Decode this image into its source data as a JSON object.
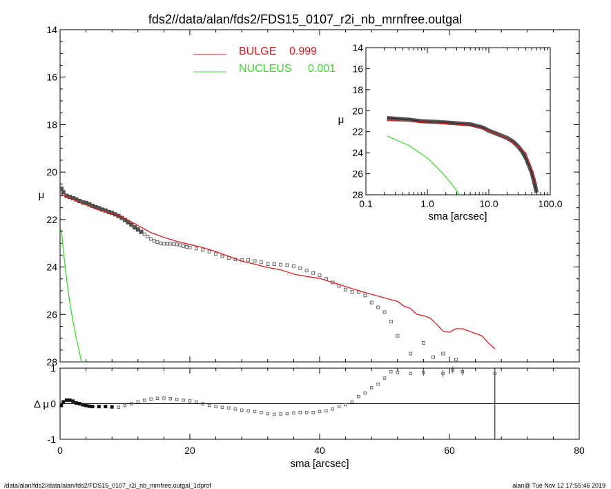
{
  "title": "fds2//data/alan/fds2/FDS15_0107_r2i_nb_mrnfree.outgal",
  "footer": {
    "left": "/data/alan/fds2//data/alan/fds2/FDS15_0107_r2i_nb_mrnfree.outgal_1dprof",
    "right": "alan@  Tue Nov 12 17:55:46 2019"
  },
  "colors": {
    "bulge": "#e41a1c",
    "nucleus": "#33dd22",
    "data": "#555555",
    "axis": "#000000"
  },
  "chart_data": [
    {
      "id": "main",
      "type": "scatter",
      "ylabel": "μ",
      "xlim": [
        0,
        80
      ],
      "ylim": [
        28,
        14
      ],
      "ytick_labels": [
        "14",
        "16",
        "18",
        "20",
        "22",
        "24",
        "26",
        "28"
      ],
      "legend": [
        {
          "name": "BULGE",
          "value": "0.999"
        },
        {
          "name": "NUCLEUS",
          "value": "0.001"
        }
      ],
      "series": [
        {
          "name": "data",
          "style": "square-markers",
          "x": [
            0.2,
            0.5,
            1.0,
            1.5,
            2.0,
            2.5,
            3.0,
            3.5,
            4.0,
            4.5,
            5.0,
            5.5,
            6.0,
            6.5,
            7.0,
            7.5,
            8.0,
            8.5,
            9.0,
            9.5,
            10.0,
            10.5,
            11.0,
            11.5,
            12.0,
            12.5,
            13.0,
            13.5,
            14.0,
            14.5,
            15.0,
            15.5,
            16.0,
            16.5,
            17.0,
            17.5,
            18.0,
            18.5,
            19.0,
            19.5,
            20.0,
            21.0,
            22.0,
            23.0,
            24.0,
            25.0,
            26.0,
            27.0,
            28.0,
            29.0,
            30.0,
            31.0,
            32.0,
            33.0,
            34.0,
            35.0,
            36.0,
            37.0,
            38.0,
            39.0,
            40.0,
            41.0,
            42.0,
            43.0,
            44.0,
            45.0,
            46.0,
            47.0,
            48.0,
            49.0,
            50.0,
            51.0,
            52.0,
            54.0,
            56.0,
            57.5,
            59.0,
            61.0
          ],
          "y": [
            20.7,
            20.85,
            21.0,
            21.05,
            21.1,
            21.15,
            21.22,
            21.28,
            21.3,
            21.36,
            21.42,
            21.48,
            21.52,
            21.58,
            21.62,
            21.68,
            21.72,
            21.78,
            21.85,
            21.93,
            22.02,
            22.12,
            22.22,
            22.33,
            22.42,
            22.52,
            22.62,
            22.72,
            22.82,
            22.9,
            22.95,
            23.0,
            23.02,
            23.02,
            23.02,
            23.03,
            23.05,
            23.08,
            23.12,
            23.15,
            23.18,
            23.22,
            23.28,
            23.35,
            23.45,
            23.55,
            23.62,
            23.68,
            23.7,
            23.7,
            23.75,
            23.8,
            23.88,
            23.88,
            23.9,
            23.92,
            23.96,
            24.05,
            24.15,
            24.25,
            24.35,
            24.5,
            24.65,
            24.8,
            24.95,
            25.05,
            25.05,
            25.2,
            25.5,
            25.7,
            25.9,
            26.3,
            26.9,
            27.65,
            27.2,
            27.8,
            27.65,
            27.9
          ]
        },
        {
          "name": "BULGE",
          "style": "line",
          "x": [
            0.2,
            2,
            4,
            6,
            8,
            10,
            12,
            14,
            16,
            18,
            20,
            22,
            24,
            26,
            28,
            30,
            32,
            34,
            36,
            38,
            40,
            42,
            44,
            46,
            48,
            50,
            52,
            53,
            54,
            55,
            56,
            57,
            58,
            59,
            60,
            61,
            62,
            63,
            64,
            65,
            66,
            67
          ],
          "y": [
            20.95,
            21.15,
            21.38,
            21.6,
            21.75,
            21.95,
            22.25,
            22.55,
            22.75,
            22.92,
            23.05,
            23.18,
            23.35,
            23.55,
            23.75,
            23.88,
            24.02,
            24.12,
            24.3,
            24.4,
            24.48,
            24.65,
            24.82,
            25.0,
            25.15,
            25.3,
            25.45,
            25.65,
            25.75,
            26.0,
            26.05,
            26.15,
            26.4,
            26.7,
            26.75,
            26.6,
            26.6,
            26.7,
            26.8,
            26.9,
            27.2,
            27.45
          ]
        },
        {
          "name": "NUCLEUS",
          "style": "line",
          "x": [
            0.2,
            0.5,
            1.0,
            1.5,
            2.0,
            2.5,
            3.0,
            3.3
          ],
          "y": [
            22.4,
            23.3,
            24.5,
            25.5,
            26.3,
            27.0,
            27.6,
            28.0
          ]
        }
      ]
    },
    {
      "id": "inset",
      "type": "line",
      "xscale": "log",
      "xlabel": "sma [arcsec]",
      "ylabel": "μ",
      "xlim": [
        0.1,
        100.0
      ],
      "ylim": [
        28,
        14
      ],
      "xtick_labels": [
        "0.1",
        "1.0",
        "10.0",
        "100.0"
      ],
      "ytick_labels": [
        "14",
        "16",
        "18",
        "20",
        "22",
        "24",
        "26",
        "28"
      ],
      "series": [
        {
          "name": "data",
          "x": [
            0.22,
            0.3,
            0.5,
            0.8,
            1.2,
            2,
            3,
            5,
            8,
            10,
            15,
            20,
            25,
            30,
            35,
            40,
            45,
            50,
            55,
            60
          ],
          "y": [
            20.7,
            20.75,
            20.85,
            21.0,
            21.05,
            21.12,
            21.2,
            21.3,
            21.6,
            21.9,
            22.3,
            22.6,
            22.95,
            23.4,
            23.9,
            24.5,
            25.2,
            25.9,
            26.8,
            27.8
          ]
        },
        {
          "name": "BULGE",
          "x": [
            0.22,
            0.5,
            1,
            2,
            5,
            10,
            20,
            40,
            60
          ],
          "y": [
            20.95,
            21.0,
            21.1,
            21.2,
            21.4,
            21.9,
            22.6,
            24.0,
            27.0
          ]
        },
        {
          "name": "NUCLEUS",
          "x": [
            0.22,
            0.5,
            1.0,
            1.5,
            2.0,
            2.5,
            3.0,
            3.3
          ],
          "y": [
            22.4,
            23.3,
            24.5,
            25.5,
            26.3,
            27.0,
            27.6,
            28.0
          ]
        }
      ]
    },
    {
      "id": "residual",
      "type": "scatter",
      "xlabel": "sma [arcsec]",
      "ylabel": "Δ μ",
      "xlim": [
        0,
        80
      ],
      "ylim": [
        -1,
        1
      ],
      "xtick_labels": [
        "0",
        "20",
        "40",
        "60",
        "80"
      ],
      "ytick_labels": [
        "-1",
        "0",
        "1"
      ],
      "cutoff_x": 67,
      "series": [
        {
          "name": "residual",
          "x": [
            0.2,
            0.5,
            1.0,
            1.5,
            2.0,
            2.5,
            3.0,
            3.5,
            4.0,
            4.5,
            5.0,
            6,
            7,
            8,
            9,
            10,
            11,
            12,
            13,
            14,
            15,
            16,
            17,
            18,
            19,
            20,
            21,
            22,
            23,
            24,
            25,
            26,
            27,
            28,
            29,
            30,
            31,
            32,
            33,
            34,
            35,
            36,
            37,
            38,
            39,
            40,
            41,
            42,
            43,
            44,
            45,
            46,
            47,
            48,
            49,
            50,
            51,
            52,
            54,
            56,
            59,
            60.5,
            62,
            67
          ],
          "y": [
            -0.05,
            0.05,
            0.1,
            0.1,
            0.07,
            0.02,
            0.0,
            -0.03,
            -0.05,
            -0.07,
            -0.08,
            -0.08,
            -0.08,
            -0.09,
            -0.1,
            -0.05,
            0.0,
            0.05,
            0.1,
            0.13,
            0.15,
            0.16,
            0.14,
            0.12,
            0.1,
            0.08,
            0.05,
            0.0,
            -0.05,
            -0.08,
            -0.1,
            -0.12,
            -0.15,
            -0.18,
            -0.2,
            -0.22,
            -0.25,
            -0.28,
            -0.3,
            -0.29,
            -0.28,
            -0.26,
            -0.25,
            -0.25,
            -0.25,
            -0.22,
            -0.2,
            -0.15,
            -0.08,
            -0.03,
            0.05,
            0.2,
            0.3,
            0.45,
            0.55,
            0.72,
            0.9,
            0.88,
            0.85,
            0.88,
            0.85,
            0.95,
            0.9,
            0.85
          ]
        }
      ]
    }
  ]
}
